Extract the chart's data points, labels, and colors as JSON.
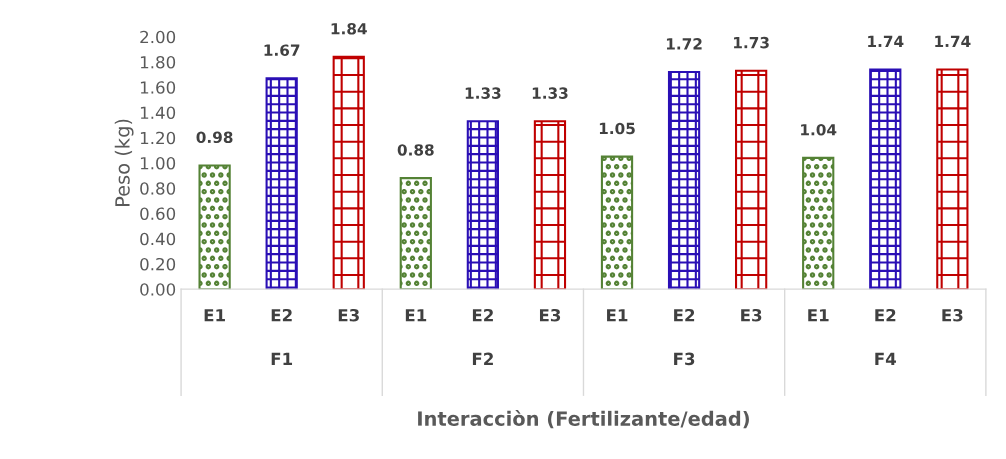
{
  "chart_data": {
    "type": "bar",
    "ylabel": "Peso (kg)",
    "xlabel": "Interacciòn (Fertilizante/edad)",
    "categories": [
      "E1",
      "E2",
      "E3",
      "E1",
      "E2",
      "E3",
      "E1",
      "E2",
      "E3",
      "E1",
      "E2",
      "E3"
    ],
    "values": [
      0.98,
      1.67,
      1.84,
      0.88,
      1.33,
      1.33,
      1.05,
      1.72,
      1.73,
      1.04,
      1.74,
      1.74
    ],
    "colors": [
      "#548235",
      "#2a0fb5",
      "#c00000",
      "#548235",
      "#2a0fb5",
      "#c00000",
      "#548235",
      "#2a0fb5",
      "#c00000",
      "#548235",
      "#2a0fb5",
      "#c00000"
    ],
    "annotations": [
      "F1",
      "F2",
      "F3",
      "F4"
    ],
    "ylim": [
      0,
      2
    ],
    "yticks": [
      {
        "value": 0,
        "label": "0.00"
      },
      {
        "value": 0.2,
        "label": "0.20"
      },
      {
        "value": 0.4,
        "label": "0.40"
      },
      {
        "value": 0.6,
        "label": "0.60"
      },
      {
        "value": 0.8,
        "label": "0.80"
      },
      {
        "value": 1.0,
        "label": "1.00"
      },
      {
        "value": 1.2,
        "label": "1.20"
      },
      {
        "value": 1.4,
        "label": "1.40"
      },
      {
        "value": 1.6,
        "label": "1.60"
      },
      {
        "value": 1.8,
        "label": "1.80"
      },
      {
        "value": 2.0,
        "label": "2.00"
      }
    ],
    "data_labels": true,
    "grid": false,
    "legend": false
  }
}
